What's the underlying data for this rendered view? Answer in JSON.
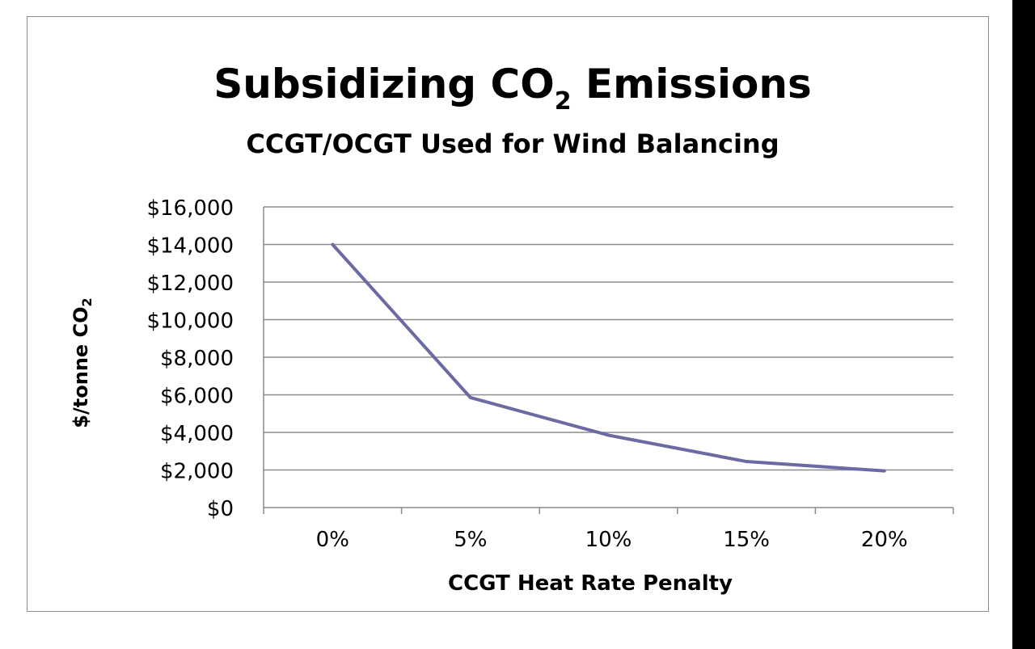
{
  "chart_data": {
    "type": "line",
    "title_main": "Subsidizing CO",
    "title_sub": "2",
    "title_end": " Emissions",
    "subtitle": "CCGT/OCGT Used for Wind Balancing",
    "xlabel": "CCGT Heat Rate Penalty",
    "ylabel_main": "$/tonne CO",
    "ylabel_sub": "2",
    "categories": [
      "0%",
      "5%",
      "10%",
      "15%",
      "20%"
    ],
    "y_tick_labels": [
      "$0",
      "$2,000",
      "$4,000",
      "$6,000",
      "$8,000",
      "$10,000",
      "$12,000",
      "$14,000",
      "$16,000"
    ],
    "ylim": [
      0,
      16000
    ],
    "grid": true,
    "series": [
      {
        "values": [
          14000,
          5850,
          3850,
          2450,
          1950
        ],
        "color": "#6b6aa3"
      }
    ]
  }
}
